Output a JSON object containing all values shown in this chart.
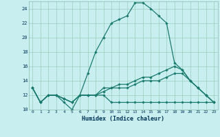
{
  "xlabel": "Humidex (Indice chaleur)",
  "xlim": [
    -0.5,
    23.5
  ],
  "ylim": [
    10,
    25
  ],
  "yticks": [
    10,
    12,
    14,
    16,
    18,
    20,
    22,
    24
  ],
  "xticks": [
    0,
    1,
    2,
    3,
    4,
    5,
    6,
    7,
    8,
    9,
    10,
    11,
    12,
    13,
    14,
    15,
    16,
    17,
    18,
    19,
    20,
    21,
    22,
    23
  ],
  "bg_color": "#c8eef0",
  "line_color": "#1a7a6e",
  "grid_color": "#99ccbb",
  "line1_x": [
    0,
    1,
    2,
    3,
    4,
    5,
    6,
    7,
    8,
    9,
    10,
    11,
    12,
    13,
    14,
    15,
    16,
    17,
    18,
    19,
    20,
    21,
    22,
    23
  ],
  "line1_y": [
    13,
    11,
    12,
    12,
    11,
    10,
    12,
    15,
    18,
    20,
    22,
    22.5,
    23,
    24.8,
    24.8,
    24,
    23,
    22,
    16.5,
    15.5,
    14,
    13,
    12,
    11
  ],
  "line2_x": [
    0,
    1,
    2,
    3,
    4,
    5,
    6,
    7,
    8,
    9,
    10,
    11,
    12,
    13,
    14,
    15,
    16,
    17,
    18,
    19,
    20,
    21,
    22,
    23
  ],
  "line2_y": [
    13,
    11,
    12,
    12,
    11.5,
    11,
    12,
    12,
    12,
    12,
    11,
    11,
    11,
    11,
    11,
    11,
    11,
    11,
    11,
    11,
    11,
    11,
    11,
    11
  ],
  "line3_x": [
    0,
    1,
    2,
    3,
    4,
    5,
    6,
    7,
    8,
    9,
    10,
    11,
    12,
    13,
    14,
    15,
    16,
    17,
    18,
    19,
    20,
    21,
    22,
    23
  ],
  "line3_y": [
    13,
    11,
    12,
    12,
    11.5,
    11,
    12,
    12,
    12,
    12.5,
    13,
    13,
    13,
    13.5,
    14,
    14,
    14,
    14.5,
    15,
    15,
    14,
    13,
    12,
    11
  ],
  "line4_x": [
    0,
    1,
    2,
    3,
    4,
    5,
    6,
    7,
    8,
    9,
    10,
    11,
    12,
    13,
    14,
    15,
    16,
    17,
    18,
    19,
    20,
    21,
    22,
    23
  ],
  "line4_y": [
    13,
    11,
    12,
    12,
    11.5,
    11,
    12,
    12,
    12,
    13,
    13,
    13.5,
    13.5,
    14,
    14.5,
    14.5,
    15,
    15.5,
    16,
    15.5,
    14,
    13,
    12,
    11
  ]
}
